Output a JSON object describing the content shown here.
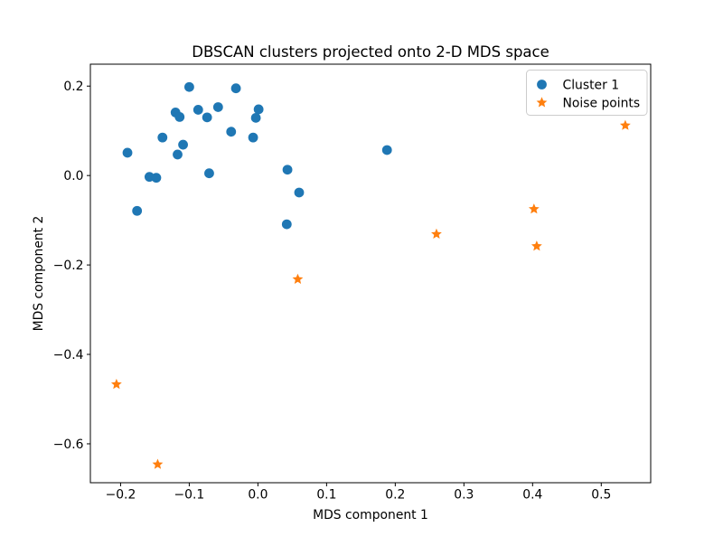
{
  "figure": {
    "title": "DBSCAN clusters projected onto 2-D MDS space",
    "xlabel": "MDS component 1",
    "ylabel": "MDS component 2"
  },
  "colors": {
    "cluster1": "#1f77b4",
    "noise": "#ff7f0e",
    "spine": "#000000",
    "legend_border": "#cccccc",
    "background": "#ffffff"
  },
  "chart_data": {
    "type": "scatter",
    "title": "DBSCAN clusters projected onto 2-D MDS space",
    "xlabel": "MDS component 1",
    "ylabel": "MDS component 2",
    "xlim": [
      -0.244,
      0.572
    ],
    "ylim": [
      -0.687,
      0.249
    ],
    "xticks": [
      -0.2,
      -0.1,
      0.0,
      0.1,
      0.2,
      0.3,
      0.4,
      0.5
    ],
    "yticks": [
      0.2,
      0.0,
      -0.2,
      -0.4,
      -0.6
    ],
    "grid": false,
    "legend": {
      "position": "upper right",
      "entries": [
        "Cluster 1",
        "Noise points"
      ]
    },
    "series": [
      {
        "name": "Cluster 1",
        "marker": "circle",
        "color": "#1f77b4",
        "points": [
          [
            -0.1,
            0.198
          ],
          [
            -0.032,
            0.195
          ],
          [
            -0.12,
            0.141
          ],
          [
            -0.114,
            0.131
          ],
          [
            -0.087,
            0.147
          ],
          [
            -0.074,
            0.13
          ],
          [
            -0.058,
            0.153
          ],
          [
            0.001,
            0.148
          ],
          [
            -0.003,
            0.129
          ],
          [
            -0.039,
            0.098
          ],
          [
            -0.007,
            0.085
          ],
          [
            -0.139,
            0.085
          ],
          [
            -0.109,
            0.069
          ],
          [
            -0.117,
            0.047
          ],
          [
            -0.19,
            0.051
          ],
          [
            -0.158,
            -0.003
          ],
          [
            -0.148,
            -0.005
          ],
          [
            -0.071,
            0.005
          ],
          [
            0.043,
            0.013
          ],
          [
            0.06,
            -0.038
          ],
          [
            -0.176,
            -0.079
          ],
          [
            0.042,
            -0.109
          ],
          [
            0.188,
            0.057
          ]
        ]
      },
      {
        "name": "Noise points",
        "marker": "star",
        "color": "#ff7f0e",
        "points": [
          [
            -0.206,
            -0.467
          ],
          [
            -0.146,
            -0.646
          ],
          [
            0.058,
            -0.232
          ],
          [
            0.26,
            -0.131
          ],
          [
            0.402,
            -0.075
          ],
          [
            0.406,
            -0.158
          ],
          [
            0.535,
            0.112
          ]
        ]
      }
    ]
  },
  "layout_note_markers": {
    "circle_icon": "filled-circle",
    "star_icon": "five-point-star"
  }
}
